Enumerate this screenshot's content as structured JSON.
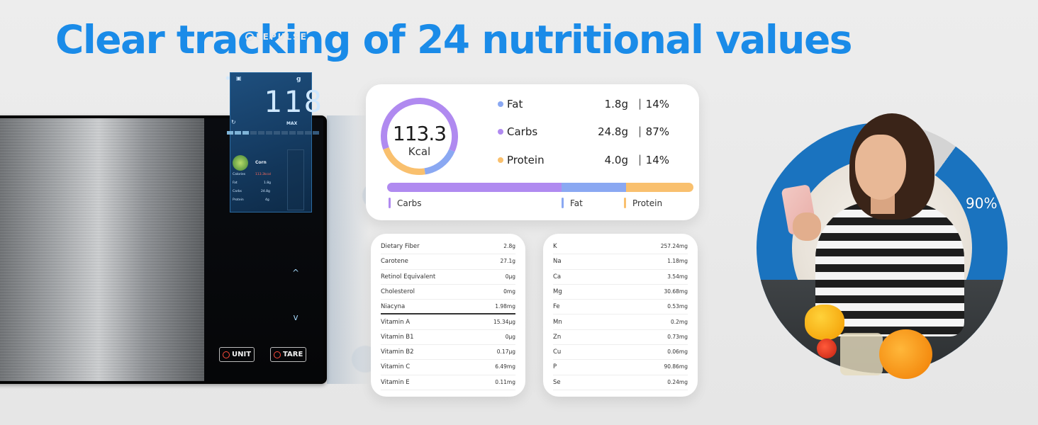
{
  "headline": "Clear tracking of 24 nutritional values",
  "scale": {
    "brand": "LEPULSE",
    "unit": "g",
    "max_label": "MAX",
    "weight": "118",
    "food_name": "Corn",
    "nutrients": [
      {
        "label": "Calories",
        "value": "113.3kcal"
      },
      {
        "label": "Fat",
        "value": "1.8g"
      },
      {
        "label": "Carbs",
        "value": "24.8g"
      },
      {
        "label": "Protein",
        "value": "4g"
      }
    ],
    "up_arrow": "^",
    "down_arrow": "v",
    "unit_button": "UNIT",
    "tare_button": "TARE",
    "bar_segments_on": 3,
    "bar_segments_total": 12
  },
  "summary": {
    "kcal_value": "113.3",
    "kcal_unit": "Kcal",
    "macros": [
      {
        "name": "Fat",
        "grams": "1.8g",
        "sep": "|",
        "percent": "14%",
        "color": "#8aa8f2"
      },
      {
        "name": "Carbs",
        "grams": "24.8g",
        "sep": "|",
        "percent": "87%",
        "color": "#b08af0"
      },
      {
        "name": "Protein",
        "grams": "4.0g",
        "sep": "|",
        "percent": "14%",
        "color": "#f9c06e"
      }
    ],
    "bar_legend": [
      {
        "name": "Carbs",
        "color": "#b08af0"
      },
      {
        "name": "Fat",
        "color": "#8aa8f2"
      },
      {
        "name": "Protein",
        "color": "#f9c06e"
      }
    ],
    "bar_shares": [
      0.57,
      0.21,
      0.22
    ],
    "donut_shares": [
      {
        "name": "Carbs",
        "share": 0.62,
        "color": "#b08af0"
      },
      {
        "name": "Fat",
        "share": 0.16,
        "color": "#8aa8f2"
      },
      {
        "name": "Protein",
        "share": 0.22,
        "color": "#f9c06e"
      }
    ]
  },
  "vitamins": [
    {
      "name": "Dietary Fiber",
      "value": "2.8g"
    },
    {
      "name": "Carotene",
      "value": "27.1g"
    },
    {
      "name": "Retinol Equivalent",
      "value": "0μg"
    },
    {
      "name": "Cholesterol",
      "value": "0mg"
    },
    {
      "name": "Niacyna",
      "value": "1.98mg"
    },
    {
      "name": "Vitamin A",
      "value": "15.34μg"
    },
    {
      "name": "Vitamin B1",
      "value": "0μg"
    },
    {
      "name": "Vitamin B2",
      "value": "0.17μg"
    },
    {
      "name": "Vitamin C",
      "value": "6.49mg"
    },
    {
      "name": "Vitamin E",
      "value": "0.11mg"
    }
  ],
  "minerals": [
    {
      "name": "K",
      "value": "257.24mg"
    },
    {
      "name": "Na",
      "value": "1.18mg"
    },
    {
      "name": "Ca",
      "value": "3.54mg"
    },
    {
      "name": "Mg",
      "value": "30.68mg"
    },
    {
      "name": "Fe",
      "value": "0.53mg"
    },
    {
      "name": "Mn",
      "value": "0.2mg"
    },
    {
      "name": "Zn",
      "value": "0.73mg"
    },
    {
      "name": "Cu",
      "value": "0.06mg"
    },
    {
      "name": "P",
      "value": "90.86mg"
    },
    {
      "name": "Se",
      "value": "0.24mg"
    }
  ],
  "photo": {
    "percent_label": "90%",
    "ring_fill": 0.9,
    "ring_color": "#1a73bf",
    "ring_rest_color": "#d4d4d4"
  }
}
